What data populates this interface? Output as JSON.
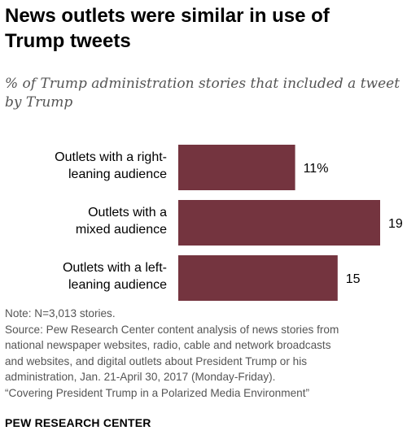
{
  "header": {
    "title_line1": "News outlets were similar in use of",
    "title_line2": "Trump tweets",
    "subtitle_line1": "% of Trump administration stories that included a tweet",
    "subtitle_line2": "by Trump"
  },
  "chart_data": {
    "type": "bar",
    "orientation": "horizontal",
    "categories": [
      [
        "Outlets with a right-",
        "leaning audience"
      ],
      [
        "Outlets with a",
        "mixed audience"
      ],
      [
        "Outlets with a left-",
        "leaning audience"
      ]
    ],
    "values": [
      11,
      19,
      15
    ],
    "value_labels": [
      "11%",
      "19",
      "15"
    ],
    "bar_color": "#74343f",
    "xlim": [
      0,
      19
    ]
  },
  "notes": {
    "line1": "Note: N=3,013 stories.",
    "line2": "Source: Pew Research Center content analysis of news stories from",
    "line3": "national newspaper websites, radio, cable and network broadcasts",
    "line4": "and websites, and digital outlets about President Trump or his",
    "line5": "administration, Jan. 21-April 30, 2017 (Monday-Friday).",
    "line6": "“Covering President Trump in a Polarized Media Environment”"
  },
  "footer": {
    "brand": "PEW RESEARCH CENTER"
  }
}
